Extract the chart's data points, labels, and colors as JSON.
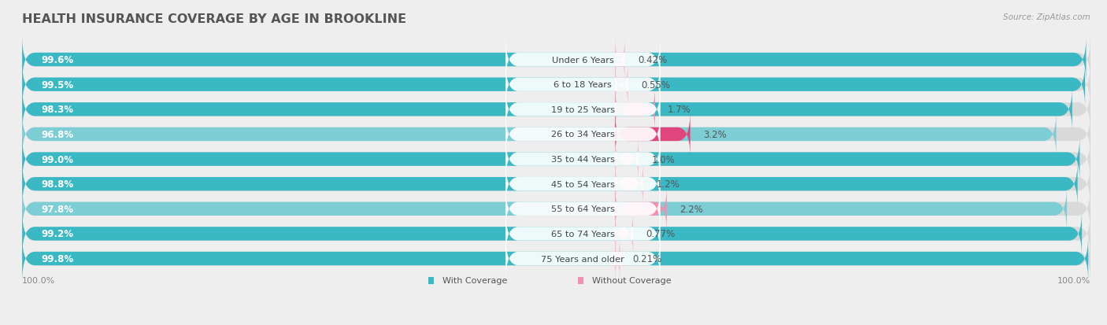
{
  "title": "HEALTH INSURANCE COVERAGE BY AGE IN BROOKLINE",
  "source": "Source: ZipAtlas.com",
  "categories": [
    "Under 6 Years",
    "6 to 18 Years",
    "19 to 25 Years",
    "26 to 34 Years",
    "35 to 44 Years",
    "45 to 54 Years",
    "55 to 64 Years",
    "65 to 74 Years",
    "75 Years and older"
  ],
  "with_coverage": [
    99.6,
    99.5,
    98.3,
    96.8,
    99.0,
    98.8,
    97.8,
    99.2,
    99.8
  ],
  "without_coverage": [
    0.42,
    0.55,
    1.7,
    3.2,
    1.0,
    1.2,
    2.2,
    0.77,
    0.21
  ],
  "with_coverage_labels": [
    "99.6%",
    "99.5%",
    "98.3%",
    "96.8%",
    "99.0%",
    "98.8%",
    "97.8%",
    "99.2%",
    "99.8%"
  ],
  "without_coverage_labels": [
    "0.42%",
    "0.55%",
    "1.7%",
    "3.2%",
    "1.0%",
    "1.2%",
    "2.2%",
    "0.77%",
    "0.21%"
  ],
  "coverage_color_1": "#3ab8c3",
  "coverage_color_2": "#3ab8c3",
  "coverage_color_3": "#3ab8c3",
  "coverage_color_4": "#7dcdd5",
  "coverage_color_5": "#3ab8c3",
  "coverage_color_6": "#3ab8c3",
  "coverage_color_7": "#7dcdd5",
  "coverage_color_8": "#3ab8c3",
  "coverage_color_9": "#3ab8c3",
  "no_cov_colors": [
    "#f9b8d0",
    "#f9b8d0",
    "#f48fb1",
    "#e0457b",
    "#f9b8d0",
    "#f9b8d0",
    "#f48fb1",
    "#f9b8d0",
    "#f9b8d0"
  ],
  "coverage_color": "#3ab8c3",
  "no_coverage_color": "#f48fb1",
  "background_color": "#eeeeee",
  "track_color": "#d9d9d9",
  "title_color": "#555555",
  "source_color": "#999999"
}
